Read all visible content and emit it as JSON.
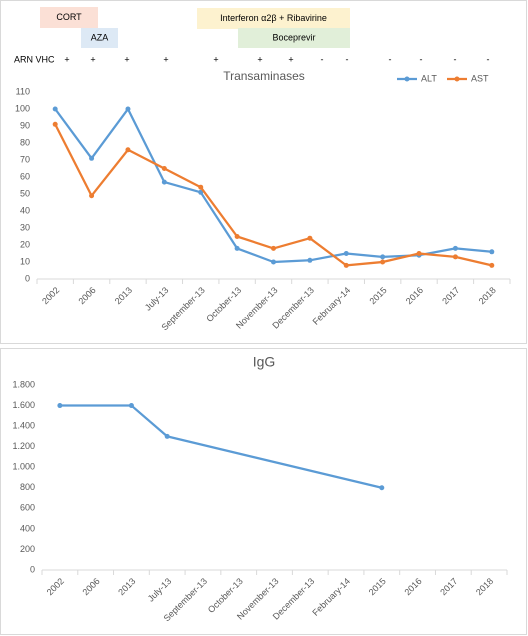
{
  "treatments": [
    {
      "label": "CORT",
      "color": "#fbe0d6"
    },
    {
      "label": "AZA",
      "color": "#dde9f5"
    },
    {
      "label": "Interferon α2β + Ribavirine",
      "color": "#fdf2cf"
    },
    {
      "label": "Boceprevir",
      "color": "#e1efd9"
    }
  ],
  "arn_vhc": {
    "label": "ARN VHC",
    "signs": [
      "+",
      "+",
      "+",
      "+",
      "+",
      "+",
      "+",
      "-",
      "-",
      "-",
      "-",
      "-",
      "-"
    ]
  },
  "chart_data": [
    {
      "type": "line",
      "title": "Transaminases",
      "categories": [
        "2002",
        "2006",
        "2013",
        "July-13",
        "September-13",
        "October-13",
        "November-13",
        "December-13",
        "February-14",
        "2015",
        "2016",
        "2017",
        "2018"
      ],
      "series": [
        {
          "name": "ALT",
          "color": "#5b9bd5",
          "values": [
            100,
            71,
            100,
            57,
            51,
            18,
            10,
            11,
            15,
            13,
            14,
            18,
            16
          ]
        },
        {
          "name": "AST",
          "color": "#ed7d31",
          "values": [
            91,
            49,
            76,
            65,
            54,
            25,
            18,
            24,
            8,
            10,
            15,
            13,
            8
          ]
        }
      ],
      "ylim": [
        0,
        110
      ],
      "yticks": [
        0,
        10,
        20,
        30,
        40,
        50,
        60,
        70,
        80,
        90,
        100,
        110
      ],
      "grid": false,
      "legend": "top-right"
    },
    {
      "type": "line",
      "title": "IgG",
      "categories": [
        "2002",
        "2006",
        "2013",
        "July-13",
        "September-13",
        "October-13",
        "November-13",
        "December-13",
        "February-14",
        "2015",
        "2016",
        "2017",
        "2018"
      ],
      "series": [
        {
          "color": "#5b9bd5",
          "values": [
            1600,
            null,
            1600,
            1300,
            null,
            null,
            null,
            null,
            null,
            800,
            null,
            null,
            null
          ]
        }
      ],
      "span_gaps": true,
      "ylim": [
        0,
        1800
      ],
      "yticks": [
        0,
        200,
        400,
        600,
        800,
        {
          "value": 1000,
          "label": "1.000"
        },
        {
          "value": 1200,
          "label": "1.200"
        },
        {
          "value": 1400,
          "label": "1.400"
        },
        {
          "value": 1600,
          "label": "1.600"
        },
        {
          "value": 1800,
          "label": "1.800"
        }
      ],
      "grid": false
    }
  ]
}
